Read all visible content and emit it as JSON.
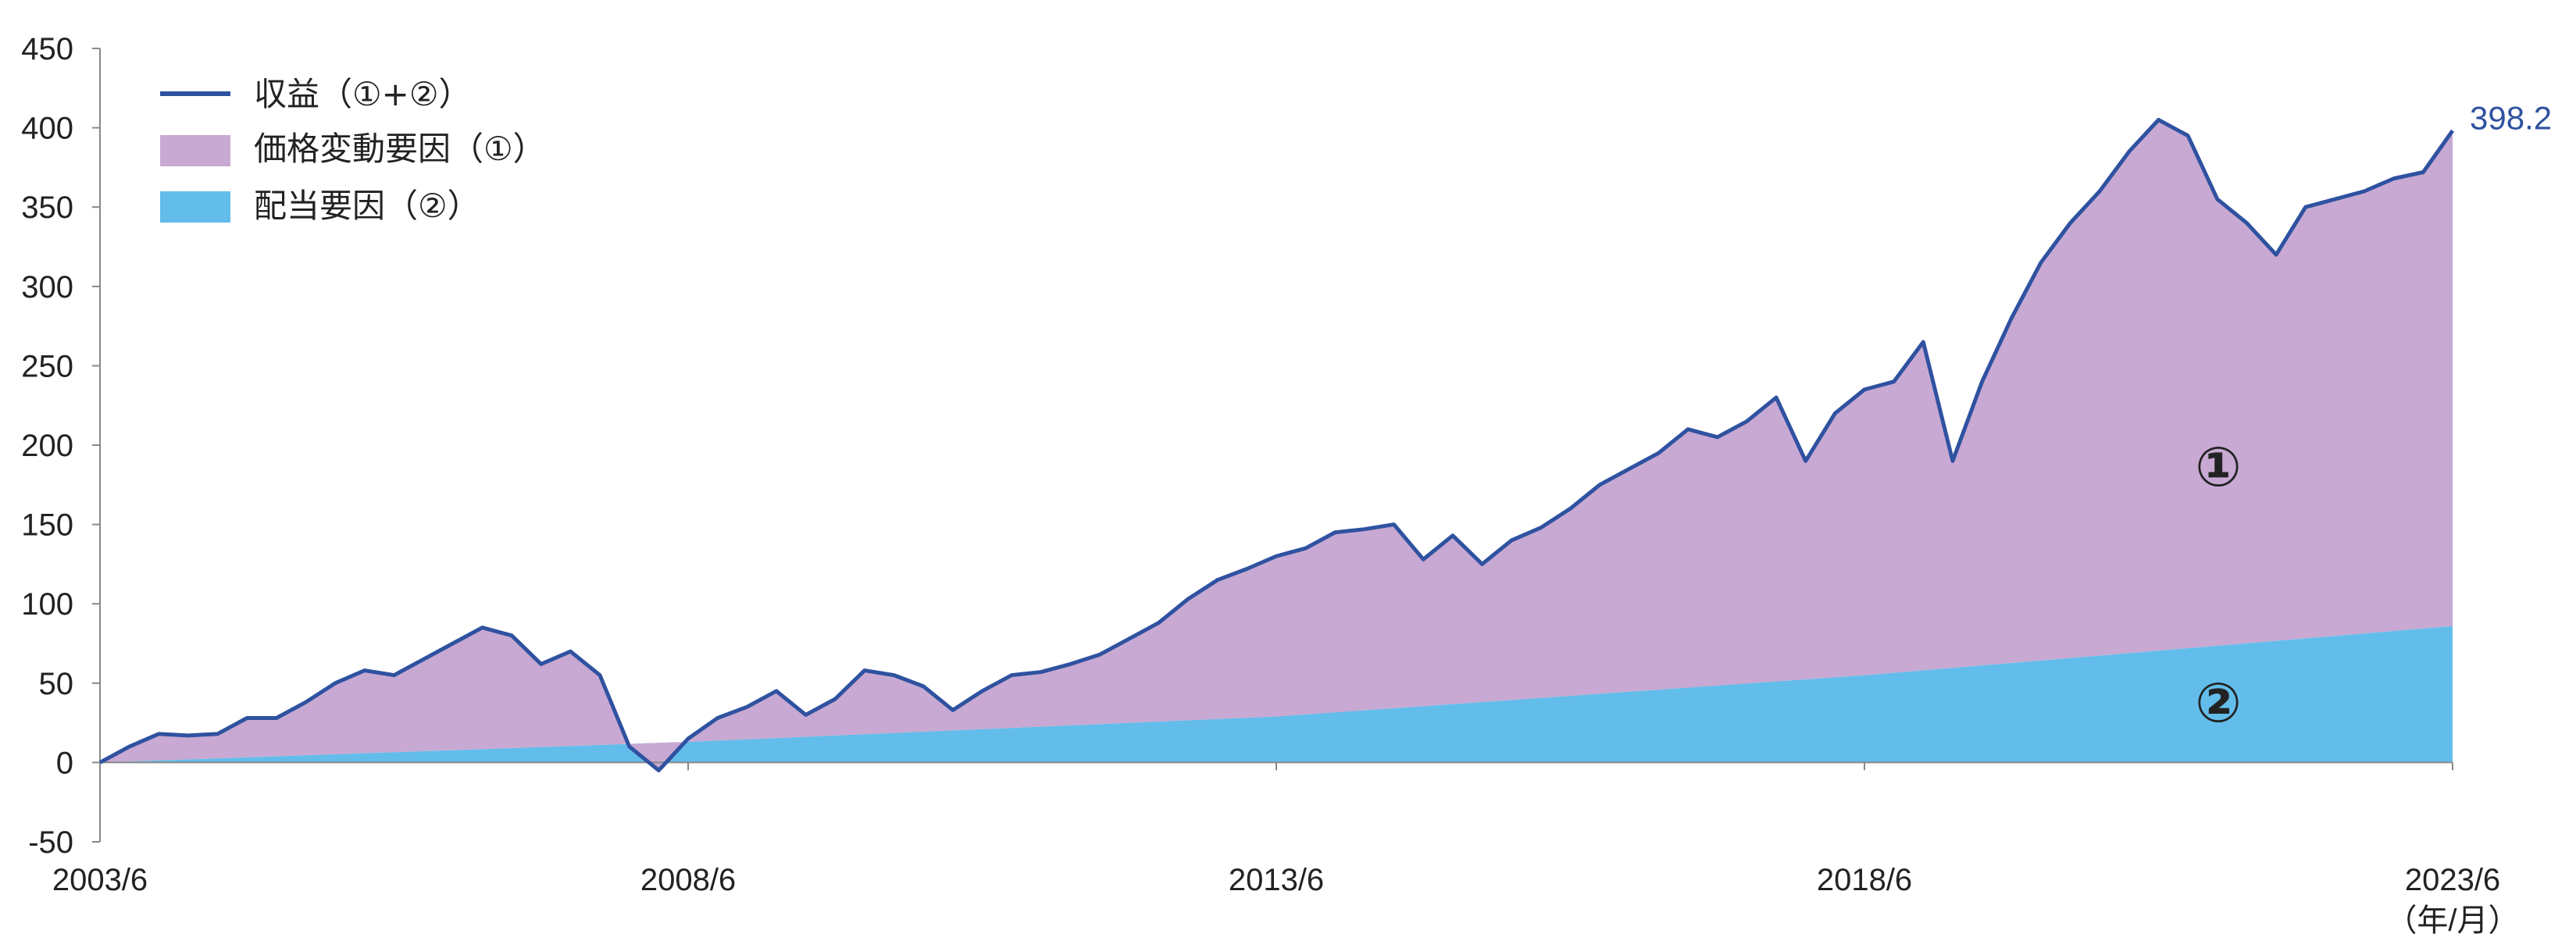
{
  "chart_data": {
    "type": "area",
    "ylim": [
      -50,
      450
    ],
    "y_ticks": [
      "-50",
      "0",
      "50",
      "100",
      "150",
      "200",
      "250",
      "300",
      "350",
      "400",
      "450"
    ],
    "x_ticks": [
      "2003/6",
      "2008/6",
      "2013/6",
      "2018/6",
      "2023/6"
    ],
    "x_unit": "（年/月）",
    "legend": {
      "line": "収益（①+②）",
      "price": "価格変動要因（①）",
      "dividend": "配当要因（②）"
    },
    "end_label": "398.2",
    "markers": {
      "price": "①",
      "dividend": "②"
    },
    "colors": {
      "line": "#2f52a0",
      "price": "#c8a9d3",
      "dividend": "#63bdea",
      "axis": "#888888"
    },
    "series": [
      {
        "name": "収益（①+②）",
        "x": [
          "2003/6",
          "2003/9",
          "2003/12",
          "2004/3",
          "2004/6",
          "2004/9",
          "2004/12",
          "2005/3",
          "2005/6",
          "2005/9",
          "2005/12",
          "2006/3",
          "2006/6",
          "2006/9",
          "2006/12",
          "2007/3",
          "2007/6",
          "2007/9",
          "2007/12",
          "2008/3",
          "2008/6",
          "2008/9",
          "2008/12",
          "2009/3",
          "2009/6",
          "2009/9",
          "2009/12",
          "2010/3",
          "2010/6",
          "2010/9",
          "2010/12",
          "2011/3",
          "2011/6",
          "2011/9",
          "2011/12",
          "2012/3",
          "2012/6",
          "2012/9",
          "2012/12",
          "2013/3",
          "2013/6",
          "2013/9",
          "2013/12",
          "2014/3",
          "2014/6",
          "2014/9",
          "2014/12",
          "2015/3",
          "2015/6",
          "2015/9",
          "2015/12",
          "2016/3",
          "2016/6",
          "2016/9",
          "2016/12",
          "2017/3",
          "2017/6",
          "2017/9",
          "2017/12",
          "2018/3",
          "2018/6",
          "2018/9",
          "2018/12",
          "2019/3",
          "2019/6",
          "2019/9",
          "2019/12",
          "2020/3",
          "2020/6",
          "2020/9",
          "2020/12",
          "2021/3",
          "2021/6",
          "2021/9",
          "2021/12",
          "2022/3",
          "2022/6",
          "2022/9",
          "2022/12",
          "2023/3",
          "2023/6"
        ],
        "values": [
          0,
          10,
          18,
          17,
          18,
          28,
          28,
          38,
          50,
          58,
          55,
          65,
          75,
          85,
          80,
          62,
          70,
          55,
          10,
          -5,
          15,
          28,
          35,
          45,
          30,
          40,
          58,
          55,
          48,
          33,
          45,
          55,
          57,
          62,
          68,
          78,
          88,
          103,
          115,
          122,
          130,
          135,
          145,
          147,
          150,
          128,
          143,
          125,
          140,
          148,
          160,
          175,
          185,
          195,
          210,
          205,
          215,
          230,
          190,
          220,
          235,
          240,
          265,
          190,
          240,
          280,
          315,
          340,
          360,
          385,
          405,
          395,
          355,
          340,
          320,
          350,
          355,
          360,
          368,
          372,
          398.2
        ]
      },
      {
        "name": "配当要因（②）",
        "x": [
          "2003/6",
          "2008/6",
          "2013/6",
          "2018/6",
          "2023/6"
        ],
        "values": [
          0,
          13,
          29,
          55,
          86
        ]
      }
    ]
  }
}
